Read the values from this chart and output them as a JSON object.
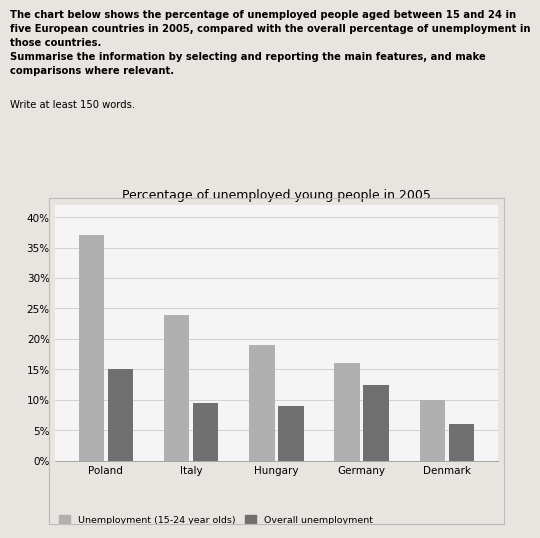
{
  "title": "Percentage of unemployed young people in 2005",
  "countries": [
    "Poland",
    "Italy",
    "Hungary",
    "Germany",
    "Denmark"
  ],
  "youth_unemployment": [
    37,
    24,
    19,
    16,
    10
  ],
  "overall_unemployment": [
    15,
    9.5,
    9,
    12.5,
    6
  ],
  "bar_color_youth": "#b0b0b0",
  "bar_color_overall": "#707070",
  "yticks": [
    0,
    5,
    10,
    15,
    20,
    25,
    30,
    35,
    40
  ],
  "ytick_labels": [
    "0%",
    "5%",
    "10%",
    "15%",
    "20%",
    "25%",
    "30%",
    "35%",
    "40%"
  ],
  "legend_youth": "Unemployment (15-24 year olds)",
  "legend_overall": "Overall unemployment",
  "line1": "The chart below shows the percentage of unemployed people aged between 15 and 24 in",
  "line2": "five European countries in 2005, compared with the overall percentage of unemployment in",
  "line3": "those countries.",
  "line4": "Summarise the information by selecting and reporting the main features, and make",
  "line5": "comparisons where relevant.",
  "subtext": "Write at least 150 words.",
  "background_color": "#e8e4df",
  "chart_bg": "#f5f5f5",
  "text_color": "#000000"
}
